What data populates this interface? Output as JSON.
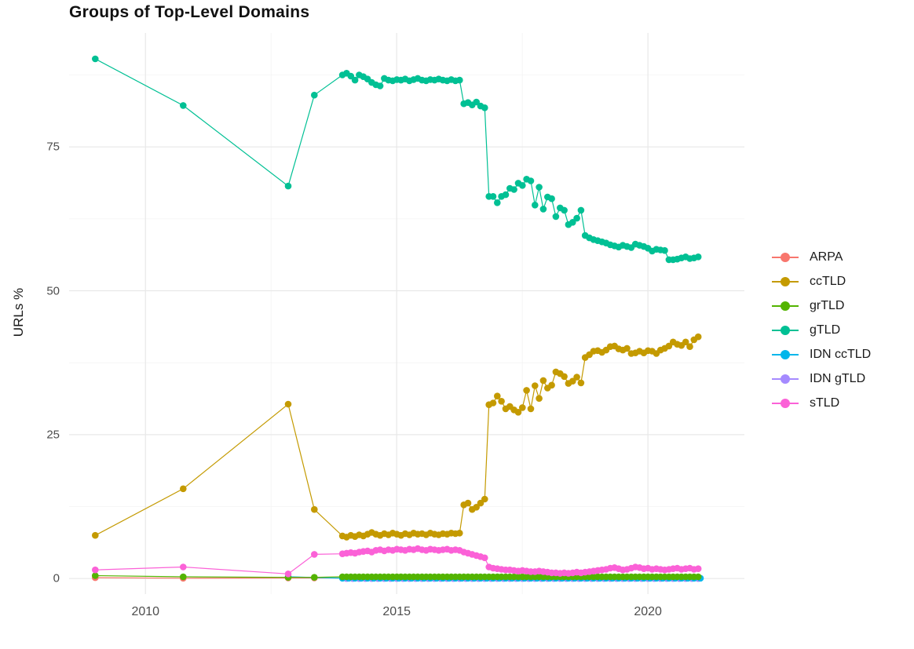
{
  "title": "Groups of Top-Level Domains",
  "chart_data": {
    "type": "line",
    "title": "Groups of Top-Level Domains",
    "xlabel": "",
    "ylabel": "URLs %",
    "grid": "on",
    "legend_position": "right",
    "xlim": [
      2008.48,
      2021.92
    ],
    "ylim": [
      -2.7,
      94.8
    ],
    "x_ticks": [
      2010,
      2015,
      2020
    ],
    "x_minor_ticks": [
      2012.5,
      2017.5
    ],
    "y_ticks": [
      0,
      25,
      50,
      75
    ],
    "y_minor_ticks": [
      12.5,
      37.5,
      62.5,
      87.5
    ],
    "grid_major_color": "#e8e8e8",
    "grid_minor_color": "#f3f3f3",
    "series": [
      {
        "name": "ARPA",
        "color": "#F8766D",
        "points": [
          [
            2009,
            0.15
          ],
          [
            2010.75,
            0.05
          ],
          [
            2012.84,
            0.1
          ],
          [
            2013.36,
            0.1
          ]
        ],
        "dense": {
          "x0": 2013.92,
          "dx": 0.25,
          "flat": 0.1,
          "count": 29
        }
      },
      {
        "name": "IDN gTLD",
        "color": "#A58AFF",
        "points": [],
        "dense": {
          "x0": 2014.0,
          "dx": 0.125,
          "flat": 0.0,
          "count": 57
        }
      },
      {
        "name": "IDN ccTLD",
        "color": "#00B6EB",
        "points": [
          [
            2012.84,
            0.3
          ]
        ],
        "dense": {
          "x0": 2013.92,
          "dx": 0.125,
          "flat": 0.05,
          "count": 58
        }
      },
      {
        "name": "grTLD",
        "color": "#53B400",
        "points": [
          [
            2009,
            0.5
          ],
          [
            2010.75,
            0.3
          ],
          [
            2012.84,
            0.2
          ],
          [
            2013.36,
            0.2
          ]
        ],
        "dense": {
          "x0": 2013.92,
          "dx": 0.0833,
          "flat": 0.3,
          "count": 86
        }
      },
      {
        "name": "ccTLD",
        "color": "#C49A00",
        "points": [
          [
            2009,
            7.5
          ],
          [
            2010.75,
            15.6
          ],
          [
            2012.84,
            30.3
          ],
          [
            2013.36,
            12.0
          ]
        ],
        "dense": {
          "x0": 2013.92,
          "dx": 0.0833,
          "values": [
            7.4,
            7.2,
            7.5,
            7.3,
            7.6,
            7.4,
            7.7,
            8.0,
            7.7,
            7.5,
            7.8,
            7.6,
            7.9,
            7.7,
            7.5,
            7.8,
            7.6,
            7.9,
            7.7,
            7.8,
            7.6,
            7.9,
            7.7,
            7.6,
            7.8,
            7.7,
            7.9,
            7.8,
            7.9,
            12.8,
            13.1,
            12.0,
            12.4,
            13.1,
            13.8,
            30.2,
            30.5,
            31.7,
            30.8,
            29.5,
            29.9,
            29.3,
            28.9,
            29.7,
            32.7,
            29.5,
            33.5,
            31.3,
            34.4,
            33.1,
            33.6,
            35.9,
            35.6,
            35.1,
            33.9,
            34.3,
            35.0,
            34.0,
            38.4,
            38.9,
            39.5,
            39.6,
            39.3,
            39.7,
            40.3,
            40.4,
            39.9,
            39.7,
            40.0,
            39.1,
            39.2,
            39.5,
            39.2,
            39.6,
            39.5,
            39.1,
            39.7,
            40.0,
            40.4,
            41.1,
            40.7,
            40.5,
            41.1,
            40.3,
            41.5,
            42.0
          ]
        }
      },
      {
        "name": "gTLD",
        "color": "#00C094",
        "points": [
          [
            2009,
            90.3
          ],
          [
            2010.75,
            82.2
          ],
          [
            2012.84,
            68.2
          ],
          [
            2013.36,
            84.0
          ]
        ],
        "dense": {
          "x0": 2013.92,
          "dx": 0.0833,
          "values": [
            87.5,
            87.8,
            87.3,
            86.6,
            87.5,
            87.2,
            86.8,
            86.2,
            85.8,
            85.6,
            86.9,
            86.6,
            86.5,
            86.7,
            86.6,
            86.8,
            86.5,
            86.7,
            86.9,
            86.6,
            86.5,
            86.7,
            86.6,
            86.8,
            86.6,
            86.5,
            86.7,
            86.5,
            86.6,
            82.5,
            82.7,
            82.3,
            82.8,
            82.1,
            81.8,
            66.4,
            66.4,
            65.3,
            66.4,
            66.7,
            67.8,
            67.6,
            68.7,
            68.3,
            69.4,
            69.1,
            64.9,
            68.0,
            64.2,
            66.3,
            66.0,
            62.9,
            64.4,
            64.0,
            61.5,
            61.9,
            62.6,
            64.0,
            59.6,
            59.2,
            58.9,
            58.7,
            58.5,
            58.3,
            58.0,
            57.8,
            57.6,
            57.9,
            57.7,
            57.5,
            58.1,
            57.9,
            57.7,
            57.4,
            56.9,
            57.2,
            57.1,
            57.0,
            55.4,
            55.4,
            55.5,
            55.7,
            55.9,
            55.6,
            55.7,
            55.9
          ]
        }
      },
      {
        "name": "sTLD",
        "color": "#FB61D7",
        "points": [
          [
            2009,
            1.5
          ],
          [
            2010.75,
            2.0
          ],
          [
            2012.84,
            0.8
          ],
          [
            2013.36,
            4.2
          ]
        ],
        "dense": {
          "x0": 2013.92,
          "dx": 0.0833,
          "values": [
            4.3,
            4.4,
            4.5,
            4.4,
            4.6,
            4.7,
            4.8,
            4.6,
            4.9,
            5.0,
            4.8,
            5.0,
            4.9,
            5.1,
            5.0,
            4.9,
            5.1,
            5.0,
            5.2,
            5.0,
            4.9,
            5.1,
            5.0,
            4.9,
            5.0,
            5.1,
            4.9,
            5.0,
            4.9,
            4.6,
            4.4,
            4.2,
            4.0,
            3.8,
            3.6,
            2.0,
            1.8,
            1.7,
            1.6,
            1.5,
            1.5,
            1.4,
            1.3,
            1.4,
            1.3,
            1.2,
            1.2,
            1.3,
            1.2,
            1.1,
            1.0,
            1.0,
            0.9,
            1.0,
            0.9,
            1.0,
            1.1,
            1.0,
            1.1,
            1.2,
            1.3,
            1.4,
            1.5,
            1.6,
            1.8,
            1.9,
            1.7,
            1.5,
            1.6,
            1.8,
            2.0,
            1.9,
            1.7,
            1.8,
            1.6,
            1.7,
            1.6,
            1.5,
            1.6,
            1.7,
            1.8,
            1.6,
            1.7,
            1.8,
            1.6,
            1.7
          ]
        }
      }
    ],
    "legend_order": [
      "ARPA",
      "ccTLD",
      "grTLD",
      "gTLD",
      "IDN ccTLD",
      "IDN gTLD",
      "sTLD"
    ]
  }
}
